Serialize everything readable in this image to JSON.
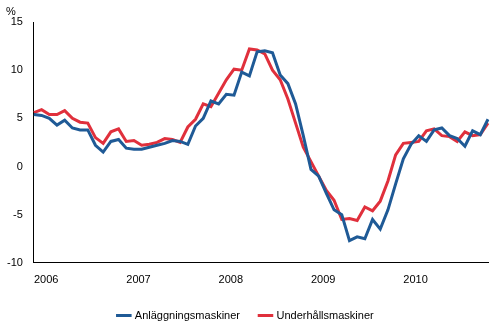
{
  "chart_data": {
    "type": "line",
    "ylabel": "%",
    "categories": [
      "2006",
      null,
      null,
      null,
      null,
      null,
      null,
      null,
      null,
      null,
      null,
      null,
      "2007",
      null,
      null,
      null,
      null,
      null,
      null,
      null,
      null,
      null,
      null,
      null,
      "2008",
      null,
      null,
      null,
      null,
      null,
      null,
      null,
      null,
      null,
      null,
      null,
      "2009",
      null,
      null,
      null,
      null,
      null,
      null,
      null,
      null,
      null,
      null,
      null,
      "2010",
      null,
      null,
      null,
      null,
      null,
      null,
      null,
      null,
      null,
      null,
      null
    ],
    "series": [
      {
        "name": "Anläggningsmaskiner",
        "color": "#1f5a96",
        "values": [
          5.4,
          5.3,
          5.0,
          4.3,
          4.8,
          4.0,
          3.8,
          3.8,
          2.2,
          1.5,
          2.6,
          2.8,
          1.9,
          1.8,
          1.8,
          2.0,
          2.2,
          2.4,
          2.7,
          2.6,
          2.3,
          4.2,
          5.0,
          6.8,
          6.5,
          7.5,
          7.4,
          9.8,
          9.4,
          11.9,
          12.0,
          11.8,
          9.5,
          8.6,
          6.5,
          3.2,
          -0.3,
          -1.0,
          -2.8,
          -4.5,
          -5.0,
          -7.7,
          -7.3,
          -7.5,
          -5.5,
          -6.5,
          -4.5,
          -1.8,
          0.8,
          2.3,
          3.2,
          2.6,
          3.8,
          4.0,
          3.2,
          2.9,
          2.1,
          3.7,
          3.3,
          4.9
        ]
      },
      {
        "name": "Underhållsmaskiner",
        "color": "#e0303c",
        "values": [
          5.6,
          5.9,
          5.4,
          5.4,
          5.8,
          5.0,
          4.6,
          4.5,
          3.0,
          2.4,
          3.6,
          3.9,
          2.6,
          2.7,
          2.2,
          2.3,
          2.5,
          2.9,
          2.8,
          2.5,
          4.1,
          4.9,
          6.5,
          6.2,
          7.6,
          9.0,
          10.1,
          10.0,
          12.2,
          12.1,
          11.7,
          10.0,
          9.0,
          7.0,
          4.5,
          2.0,
          0.5,
          -1.0,
          -2.5,
          -3.5,
          -5.5,
          -5.4,
          -5.6,
          -4.2,
          -4.6,
          -3.6,
          -1.5,
          1.2,
          2.4,
          2.5,
          2.6,
          3.7,
          3.9,
          3.2,
          3.1,
          2.6,
          3.6,
          3.2,
          3.3,
          4.5
        ]
      }
    ],
    "ylim": [
      -10,
      15
    ],
    "yticks": [
      -10,
      -5,
      0,
      5,
      10,
      15
    ],
    "grid": false,
    "legend": "bottom"
  }
}
